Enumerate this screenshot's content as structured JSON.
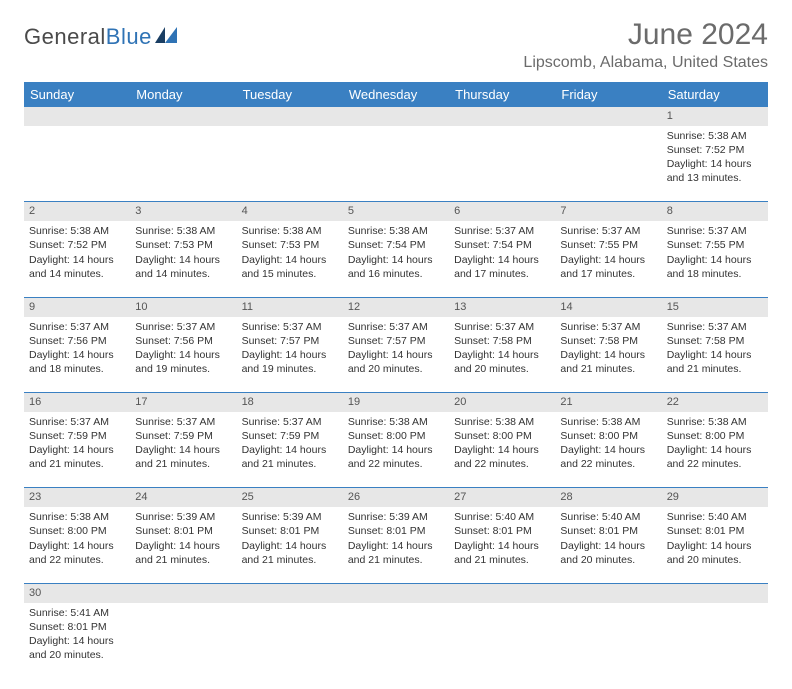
{
  "brand": {
    "text1": "General",
    "text2": "Blue"
  },
  "title": "June 2024",
  "location": "Lipscomb, Alabama, United States",
  "colors": {
    "header_bg": "#3a80c2",
    "header_text": "#ffffff",
    "daynum_bg": "#e7e7e7",
    "cell_border": "#3a80c2",
    "title_color": "#6b6b6b"
  },
  "day_headers": [
    "Sunday",
    "Monday",
    "Tuesday",
    "Wednesday",
    "Thursday",
    "Friday",
    "Saturday"
  ],
  "weeks": [
    {
      "nums": [
        "",
        "",
        "",
        "",
        "",
        "",
        "1"
      ],
      "cells": [
        null,
        null,
        null,
        null,
        null,
        null,
        {
          "sunrise": "5:38 AM",
          "sunset": "7:52 PM",
          "daylight": "14 hours and 13 minutes."
        }
      ]
    },
    {
      "nums": [
        "2",
        "3",
        "4",
        "5",
        "6",
        "7",
        "8"
      ],
      "cells": [
        {
          "sunrise": "5:38 AM",
          "sunset": "7:52 PM",
          "daylight": "14 hours and 14 minutes."
        },
        {
          "sunrise": "5:38 AM",
          "sunset": "7:53 PM",
          "daylight": "14 hours and 14 minutes."
        },
        {
          "sunrise": "5:38 AM",
          "sunset": "7:53 PM",
          "daylight": "14 hours and 15 minutes."
        },
        {
          "sunrise": "5:38 AM",
          "sunset": "7:54 PM",
          "daylight": "14 hours and 16 minutes."
        },
        {
          "sunrise": "5:37 AM",
          "sunset": "7:54 PM",
          "daylight": "14 hours and 17 minutes."
        },
        {
          "sunrise": "5:37 AM",
          "sunset": "7:55 PM",
          "daylight": "14 hours and 17 minutes."
        },
        {
          "sunrise": "5:37 AM",
          "sunset": "7:55 PM",
          "daylight": "14 hours and 18 minutes."
        }
      ]
    },
    {
      "nums": [
        "9",
        "10",
        "11",
        "12",
        "13",
        "14",
        "15"
      ],
      "cells": [
        {
          "sunrise": "5:37 AM",
          "sunset": "7:56 PM",
          "daylight": "14 hours and 18 minutes."
        },
        {
          "sunrise": "5:37 AM",
          "sunset": "7:56 PM",
          "daylight": "14 hours and 19 minutes."
        },
        {
          "sunrise": "5:37 AM",
          "sunset": "7:57 PM",
          "daylight": "14 hours and 19 minutes."
        },
        {
          "sunrise": "5:37 AM",
          "sunset": "7:57 PM",
          "daylight": "14 hours and 20 minutes."
        },
        {
          "sunrise": "5:37 AM",
          "sunset": "7:58 PM",
          "daylight": "14 hours and 20 minutes."
        },
        {
          "sunrise": "5:37 AM",
          "sunset": "7:58 PM",
          "daylight": "14 hours and 21 minutes."
        },
        {
          "sunrise": "5:37 AM",
          "sunset": "7:58 PM",
          "daylight": "14 hours and 21 minutes."
        }
      ]
    },
    {
      "nums": [
        "16",
        "17",
        "18",
        "19",
        "20",
        "21",
        "22"
      ],
      "cells": [
        {
          "sunrise": "5:37 AM",
          "sunset": "7:59 PM",
          "daylight": "14 hours and 21 minutes."
        },
        {
          "sunrise": "5:37 AM",
          "sunset": "7:59 PM",
          "daylight": "14 hours and 21 minutes."
        },
        {
          "sunrise": "5:37 AM",
          "sunset": "7:59 PM",
          "daylight": "14 hours and 21 minutes."
        },
        {
          "sunrise": "5:38 AM",
          "sunset": "8:00 PM",
          "daylight": "14 hours and 22 minutes."
        },
        {
          "sunrise": "5:38 AM",
          "sunset": "8:00 PM",
          "daylight": "14 hours and 22 minutes."
        },
        {
          "sunrise": "5:38 AM",
          "sunset": "8:00 PM",
          "daylight": "14 hours and 22 minutes."
        },
        {
          "sunrise": "5:38 AM",
          "sunset": "8:00 PM",
          "daylight": "14 hours and 22 minutes."
        }
      ]
    },
    {
      "nums": [
        "23",
        "24",
        "25",
        "26",
        "27",
        "28",
        "29"
      ],
      "cells": [
        {
          "sunrise": "5:38 AM",
          "sunset": "8:00 PM",
          "daylight": "14 hours and 22 minutes."
        },
        {
          "sunrise": "5:39 AM",
          "sunset": "8:01 PM",
          "daylight": "14 hours and 21 minutes."
        },
        {
          "sunrise": "5:39 AM",
          "sunset": "8:01 PM",
          "daylight": "14 hours and 21 minutes."
        },
        {
          "sunrise": "5:39 AM",
          "sunset": "8:01 PM",
          "daylight": "14 hours and 21 minutes."
        },
        {
          "sunrise": "5:40 AM",
          "sunset": "8:01 PM",
          "daylight": "14 hours and 21 minutes."
        },
        {
          "sunrise": "5:40 AM",
          "sunset": "8:01 PM",
          "daylight": "14 hours and 20 minutes."
        },
        {
          "sunrise": "5:40 AM",
          "sunset": "8:01 PM",
          "daylight": "14 hours and 20 minutes."
        }
      ]
    },
    {
      "nums": [
        "30",
        "",
        "",
        "",
        "",
        "",
        ""
      ],
      "cells": [
        {
          "sunrise": "5:41 AM",
          "sunset": "8:01 PM",
          "daylight": "14 hours and 20 minutes."
        },
        null,
        null,
        null,
        null,
        null,
        null
      ]
    }
  ],
  "labels": {
    "sunrise": "Sunrise: ",
    "sunset": "Sunset: ",
    "daylight": "Daylight: "
  }
}
